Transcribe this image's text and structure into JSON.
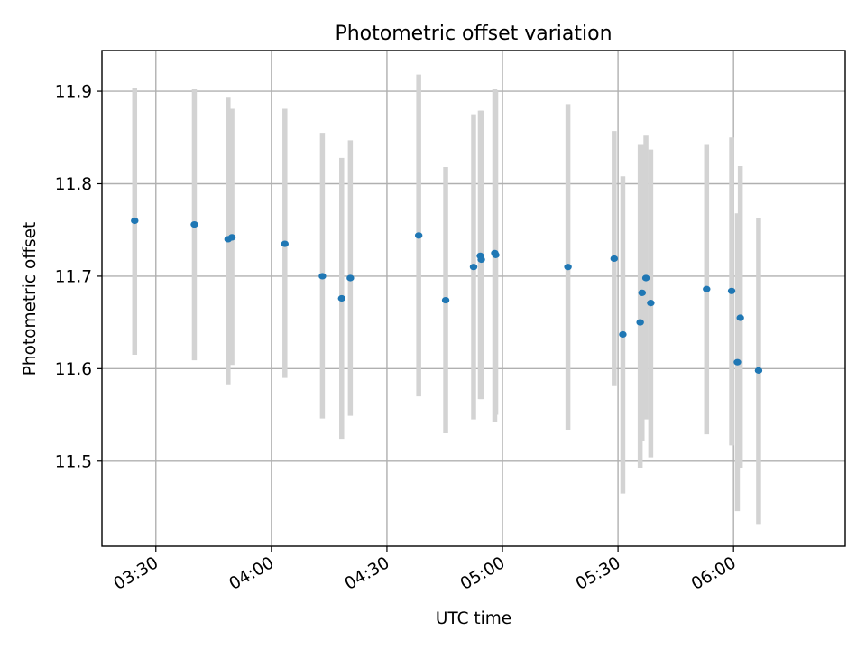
{
  "chart_data": {
    "type": "scatter",
    "title": "Photometric offset variation",
    "xlabel": "UTC time",
    "ylabel": "Photometric offset",
    "x_axis_kind": "time",
    "xlim": [
      "03:16",
      "06:29"
    ],
    "ylim": [
      11.408,
      11.944
    ],
    "grid": true,
    "x_ticks": [
      "03:30",
      "04:00",
      "04:30",
      "05:00",
      "05:30",
      "06:00"
    ],
    "y_ticks": [
      "11.5",
      "11.6",
      "11.7",
      "11.8",
      "11.9"
    ],
    "colors": {
      "point": "#1f77b4",
      "errorbar": "#d3d3d3"
    },
    "points": [
      {
        "time": "03:24:30",
        "y": 11.76,
        "y_low": 11.615,
        "y_high": 11.904
      },
      {
        "time": "03:40:00",
        "y": 11.756,
        "y_low": 11.609,
        "y_high": 11.902
      },
      {
        "time": "03:48:45",
        "y": 11.74,
        "y_low": 11.583,
        "y_high": 11.894
      },
      {
        "time": "03:49:45",
        "y": 11.742,
        "y_low": 11.604,
        "y_high": 11.881
      },
      {
        "time": "04:03:30",
        "y": 11.735,
        "y_low": 11.59,
        "y_high": 11.881
      },
      {
        "time": "04:13:15",
        "y": 11.7,
        "y_low": 11.546,
        "y_high": 11.855
      },
      {
        "time": "04:18:15",
        "y": 11.676,
        "y_low": 11.524,
        "y_high": 11.828
      },
      {
        "time": "04:20:30",
        "y": 11.698,
        "y_low": 11.549,
        "y_high": 11.847
      },
      {
        "time": "04:38:15",
        "y": 11.744,
        "y_low": 11.57,
        "y_high": 11.918
      },
      {
        "time": "04:45:15",
        "y": 11.674,
        "y_low": 11.53,
        "y_high": 11.818
      },
      {
        "time": "04:52:30",
        "y": 11.71,
        "y_low": 11.545,
        "y_high": 11.875
      },
      {
        "time": "04:54:15",
        "y": 11.722,
        "y_low": 11.567,
        "y_high": 11.879
      },
      {
        "time": "04:54:30",
        "y": 11.718,
        "y_low": 11.567,
        "y_high": 11.879
      },
      {
        "time": "04:58:00",
        "y": 11.725,
        "y_low": 11.542,
        "y_high": 11.902
      },
      {
        "time": "04:58:15",
        "y": 11.723,
        "y_low": 11.55,
        "y_high": 11.9
      },
      {
        "time": "05:17:00",
        "y": 11.71,
        "y_low": 11.534,
        "y_high": 11.886
      },
      {
        "time": "05:29:00",
        "y": 11.719,
        "y_low": 11.581,
        "y_high": 11.857
      },
      {
        "time": "05:31:15",
        "y": 11.637,
        "y_low": 11.465,
        "y_high": 11.808
      },
      {
        "time": "05:35:45",
        "y": 11.65,
        "y_low": 11.493,
        "y_high": 11.842
      },
      {
        "time": "05:36:15",
        "y": 11.682,
        "y_low": 11.522,
        "y_high": 11.842
      },
      {
        "time": "05:37:15",
        "y": 11.698,
        "y_low": 11.545,
        "y_high": 11.852
      },
      {
        "time": "05:38:30",
        "y": 11.671,
        "y_low": 11.504,
        "y_high": 11.837
      },
      {
        "time": "05:53:00",
        "y": 11.686,
        "y_low": 11.529,
        "y_high": 11.842
      },
      {
        "time": "05:59:30",
        "y": 11.684,
        "y_low": 11.517,
        "y_high": 11.85
      },
      {
        "time": "06:01:00",
        "y": 11.607,
        "y_low": 11.446,
        "y_high": 11.768
      },
      {
        "time": "06:01:45",
        "y": 11.655,
        "y_low": 11.493,
        "y_high": 11.819
      },
      {
        "time": "06:06:30",
        "y": 11.598,
        "y_low": 11.432,
        "y_high": 11.763
      }
    ]
  }
}
